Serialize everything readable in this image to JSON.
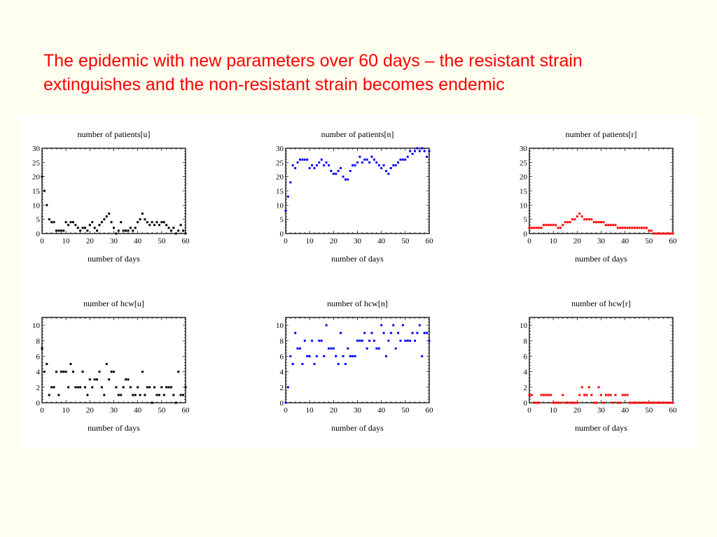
{
  "slide": {
    "title_line1": "The epidemic with new parameters over 60 days – the resistant strain",
    "title_line2": "extinguishes and the non-resistant strain becomes endemic"
  },
  "chart_data": [
    {
      "type": "scatter",
      "title": "number of patients[u]",
      "xlabel": "number of days",
      "ylabel": "",
      "xlim": [
        0,
        60
      ],
      "ylim": [
        0,
        30
      ],
      "xticks": [
        0,
        10,
        20,
        30,
        40,
        50,
        60
      ],
      "yticks": [
        0,
        5,
        10,
        15,
        20,
        25,
        30
      ],
      "color": "#000000",
      "x": [
        0,
        1,
        2,
        3,
        4,
        5,
        6,
        7,
        8,
        9,
        10,
        11,
        12,
        13,
        14,
        15,
        16,
        17,
        18,
        19,
        20,
        21,
        22,
        23,
        24,
        25,
        26,
        27,
        28,
        29,
        30,
        31,
        32,
        33,
        34,
        35,
        36,
        37,
        38,
        39,
        40,
        41,
        42,
        43,
        44,
        45,
        46,
        47,
        48,
        49,
        50,
        51,
        52,
        53,
        54,
        55,
        56,
        57,
        58,
        59,
        60
      ],
      "y": [
        20,
        15,
        10,
        5,
        4,
        4,
        1,
        1,
        1,
        1,
        4,
        3,
        4,
        4,
        3,
        2,
        1,
        2,
        2,
        1,
        3,
        4,
        2,
        1,
        3,
        4,
        5,
        6,
        7,
        4,
        2,
        0,
        1,
        4,
        1,
        1,
        1,
        2,
        1,
        2,
        4,
        5,
        7,
        5,
        4,
        3,
        4,
        3,
        4,
        3,
        4,
        4,
        3,
        2,
        1,
        2,
        0,
        1,
        3,
        1,
        0
      ]
    },
    {
      "type": "scatter",
      "title": "number of patients[n]",
      "xlabel": "number of days",
      "ylabel": "",
      "xlim": [
        0,
        60
      ],
      "ylim": [
        0,
        30
      ],
      "xticks": [
        0,
        10,
        20,
        30,
        40,
        50,
        60
      ],
      "yticks": [
        0,
        5,
        10,
        15,
        20,
        25,
        30
      ],
      "color": "#0000ff",
      "x": [
        0,
        1,
        2,
        3,
        4,
        5,
        6,
        7,
        8,
        9,
        10,
        11,
        12,
        13,
        14,
        15,
        16,
        17,
        18,
        19,
        20,
        21,
        22,
        23,
        24,
        25,
        26,
        27,
        28,
        29,
        30,
        31,
        32,
        33,
        34,
        35,
        36,
        37,
        38,
        39,
        40,
        41,
        42,
        43,
        44,
        45,
        46,
        47,
        48,
        49,
        50,
        51,
        52,
        53,
        54,
        55,
        56,
        57,
        58,
        59,
        60
      ],
      "y": [
        8,
        13,
        18,
        24,
        23,
        25,
        26,
        26,
        26,
        26,
        23,
        24,
        23,
        24,
        25,
        26,
        24,
        25,
        24,
        22,
        21,
        21,
        22,
        23,
        20,
        19,
        19,
        22,
        24,
        24,
        25,
        27,
        25,
        26,
        26,
        25,
        27,
        26,
        25,
        24,
        23,
        24,
        22,
        21,
        23,
        24,
        24,
        25,
        26,
        26,
        26,
        27,
        29,
        28,
        29,
        30,
        29,
        30,
        29,
        27,
        29
      ]
    },
    {
      "type": "scatter",
      "title": "number of patients[r]",
      "xlabel": "number of days",
      "ylabel": "",
      "xlim": [
        0,
        60
      ],
      "ylim": [
        0,
        30
      ],
      "xticks": [
        0,
        10,
        20,
        30,
        40,
        50,
        60
      ],
      "yticks": [
        0,
        5,
        10,
        15,
        20,
        25,
        30
      ],
      "color": "#ff0000",
      "x": [
        0,
        1,
        2,
        3,
        4,
        5,
        6,
        7,
        8,
        9,
        10,
        11,
        12,
        13,
        14,
        15,
        16,
        17,
        18,
        19,
        20,
        21,
        22,
        23,
        24,
        25,
        26,
        27,
        28,
        29,
        30,
        31,
        32,
        33,
        34,
        35,
        36,
        37,
        38,
        39,
        40,
        41,
        42,
        43,
        44,
        45,
        46,
        47,
        48,
        49,
        50,
        51,
        52,
        53,
        54,
        55,
        56,
        57,
        58,
        59,
        60
      ],
      "y": [
        2,
        2,
        2,
        2,
        2,
        2,
        3,
        3,
        3,
        3,
        3,
        3,
        2,
        2,
        3,
        4,
        4,
        4,
        5,
        5,
        6,
        7,
        6,
        5,
        5,
        5,
        5,
        4,
        4,
        4,
        4,
        4,
        3,
        3,
        3,
        3,
        3,
        2,
        2,
        2,
        2,
        2,
        2,
        2,
        2,
        2,
        2,
        2,
        2,
        2,
        1,
        1,
        0,
        0,
        0,
        0,
        0,
        0,
        0,
        0,
        0
      ]
    },
    {
      "type": "scatter",
      "title": "number of hcw[u]",
      "xlabel": "number of days",
      "ylabel": "",
      "xlim": [
        0,
        60
      ],
      "ylim": [
        0,
        11
      ],
      "xticks": [
        0,
        10,
        20,
        30,
        40,
        50,
        60
      ],
      "yticks": [
        0,
        2,
        4,
        6,
        8,
        10
      ],
      "color": "#000000",
      "x": [
        0,
        1,
        2,
        3,
        4,
        5,
        6,
        7,
        8,
        9,
        10,
        11,
        12,
        13,
        14,
        15,
        16,
        17,
        18,
        19,
        20,
        21,
        22,
        23,
        24,
        25,
        26,
        27,
        28,
        29,
        30,
        31,
        32,
        33,
        34,
        35,
        36,
        37,
        38,
        39,
        40,
        41,
        42,
        43,
        44,
        45,
        46,
        47,
        48,
        49,
        50,
        51,
        52,
        53,
        54,
        55,
        56,
        57,
        58,
        59,
        60
      ],
      "y": [
        7,
        4,
        5,
        1,
        2,
        2,
        4,
        1,
        4,
        4,
        4,
        2,
        5,
        4,
        2,
        2,
        2,
        4,
        2,
        1,
        3,
        2,
        3,
        3,
        4,
        2,
        1,
        5,
        3,
        4,
        4,
        2,
        1,
        1,
        2,
        3,
        3,
        2,
        1,
        1,
        2,
        1,
        4,
        1,
        2,
        2,
        0,
        2,
        1,
        1,
        2,
        1,
        2,
        2,
        2,
        1,
        0,
        4,
        1,
        1,
        2
      ]
    },
    {
      "type": "scatter",
      "title": "number of hcw[n]",
      "xlabel": "number of days",
      "ylabel": "",
      "xlim": [
        0,
        60
      ],
      "ylim": [
        0,
        11
      ],
      "xticks": [
        0,
        10,
        20,
        30,
        40,
        50,
        60
      ],
      "yticks": [
        0,
        2,
        4,
        6,
        8,
        10
      ],
      "color": "#0000ff",
      "x": [
        0,
        1,
        2,
        3,
        4,
        5,
        6,
        7,
        8,
        9,
        10,
        11,
        12,
        13,
        14,
        15,
        16,
        17,
        18,
        19,
        20,
        21,
        22,
        23,
        24,
        25,
        26,
        27,
        28,
        29,
        30,
        31,
        32,
        33,
        34,
        35,
        36,
        37,
        38,
        39,
        40,
        41,
        42,
        43,
        44,
        45,
        46,
        47,
        48,
        49,
        50,
        51,
        52,
        53,
        54,
        55,
        56,
        57,
        58,
        59,
        60
      ],
      "y": [
        0,
        2,
        6,
        5,
        9,
        7,
        7,
        5,
        8,
        6,
        6,
        8,
        5,
        6,
        8,
        8,
        6,
        10,
        7,
        7,
        7,
        6,
        5,
        9,
        6,
        5,
        7,
        6,
        6,
        6,
        8,
        8,
        8,
        9,
        7,
        8,
        9,
        8,
        7,
        7,
        10,
        9,
        6,
        8,
        9,
        10,
        7,
        9,
        8,
        10,
        8,
        8,
        8,
        9,
        8,
        9,
        10,
        6,
        9,
        9,
        8
      ]
    },
    {
      "type": "scatter",
      "title": "number of hcw[r]",
      "xlabel": "number of days",
      "ylabel": "",
      "xlim": [
        0,
        60
      ],
      "ylim": [
        0,
        11
      ],
      "xticks": [
        0,
        10,
        20,
        30,
        40,
        50,
        60
      ],
      "yticks": [
        0,
        2,
        4,
        6,
        8,
        10
      ],
      "color": "#ff0000",
      "x": [
        0,
        1,
        2,
        3,
        4,
        5,
        6,
        7,
        8,
        9,
        10,
        11,
        12,
        13,
        14,
        15,
        16,
        17,
        18,
        19,
        20,
        21,
        22,
        23,
        24,
        25,
        26,
        27,
        28,
        29,
        30,
        31,
        32,
        33,
        34,
        35,
        36,
        37,
        38,
        39,
        40,
        41,
        42,
        43,
        44,
        45,
        46,
        47,
        48,
        49,
        50,
        51,
        52,
        53,
        54,
        55,
        56,
        57,
        58,
        59,
        60
      ],
      "y": [
        1,
        1,
        0,
        0,
        0,
        1,
        1,
        1,
        1,
        1,
        0,
        0,
        0,
        0,
        1,
        0,
        0,
        0,
        0,
        0,
        0,
        1,
        2,
        1,
        1,
        2,
        1,
        0,
        0,
        2,
        1,
        0,
        1,
        1,
        1,
        0,
        1,
        0,
        0,
        1,
        1,
        1,
        0,
        0,
        0,
        0,
        0,
        0,
        0,
        0,
        0,
        0,
        0,
        0,
        0,
        0,
        0,
        0,
        0,
        0,
        0
      ]
    }
  ]
}
